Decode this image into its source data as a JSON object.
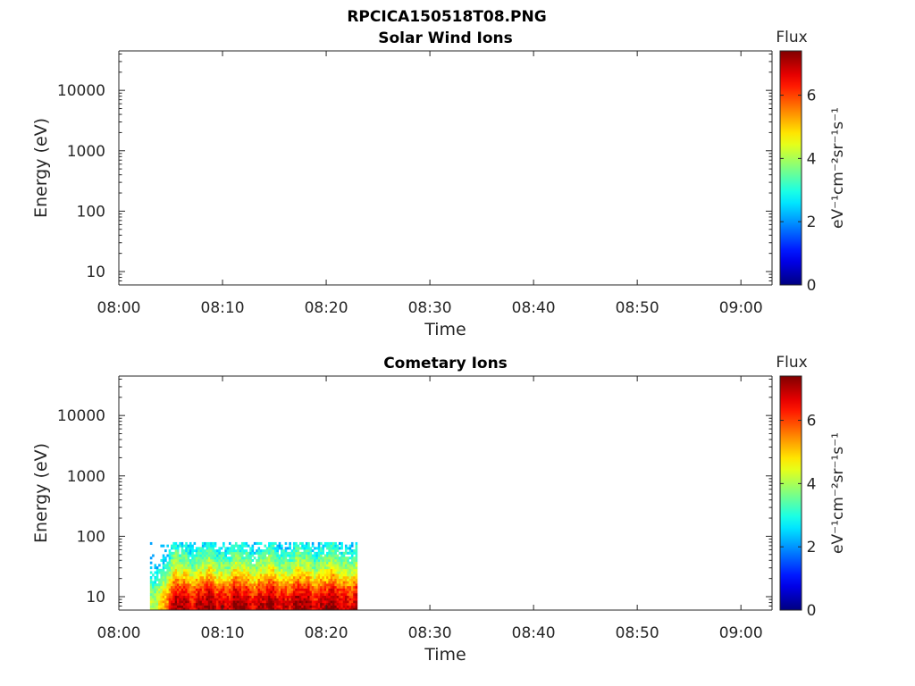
{
  "figure_title": "RPCICA150518T08.PNG",
  "chart_data": [
    {
      "type": "heatmap",
      "title": "Solar Wind Ions",
      "xlabel": "Time",
      "ylabel": "Energy (eV)",
      "x_ticks": [
        "08:00",
        "08:10",
        "08:20",
        "08:30",
        "08:40",
        "08:50",
        "09:00"
      ],
      "xlim": [
        "08:00",
        "09:03"
      ],
      "y_scale": "log",
      "y_ticks": [
        "10",
        "100",
        "1000",
        "10000"
      ],
      "ylim": [
        6,
        45000
      ],
      "colorbar": {
        "label": "Flux",
        "unit": "eV⁻¹cm⁻²sr⁻¹s⁻¹",
        "ticks": [
          "0",
          "2",
          "4",
          "6"
        ],
        "range": [
          0,
          7.4
        ],
        "colormap": "jet"
      },
      "data": []
    },
    {
      "type": "heatmap",
      "title": "Cometary Ions",
      "xlabel": "Time",
      "ylabel": "Energy (eV)",
      "x_ticks": [
        "08:00",
        "08:10",
        "08:20",
        "08:30",
        "08:40",
        "08:50",
        "09:00"
      ],
      "xlim": [
        "08:00",
        "09:03"
      ],
      "y_scale": "log",
      "y_ticks": [
        "10",
        "100",
        "1000",
        "10000"
      ],
      "ylim": [
        6,
        45000
      ],
      "colorbar": {
        "label": "Flux",
        "unit": "eV⁻¹cm⁻²sr⁻¹s⁻¹",
        "ticks": [
          "0",
          "2",
          "4",
          "6"
        ],
        "range": [
          0,
          7.4
        ],
        "colormap": "jet"
      },
      "data": {
        "time_range": [
          "08:03",
          "08:23"
        ],
        "energy_range_eV": [
          6,
          80
        ],
        "flux_profile": [
          {
            "energy": 7,
            "flux": 7.0
          },
          {
            "energy": 10,
            "flux": 6.6
          },
          {
            "energy": 15,
            "flux": 5.8
          },
          {
            "energy": 22,
            "flux": 4.8
          },
          {
            "energy": 32,
            "flux": 4.0
          },
          {
            "energy": 45,
            "flux": 3.4
          },
          {
            "energy": 60,
            "flux": 2.9
          },
          {
            "energy": 80,
            "flux": 2.5
          }
        ]
      }
    }
  ]
}
